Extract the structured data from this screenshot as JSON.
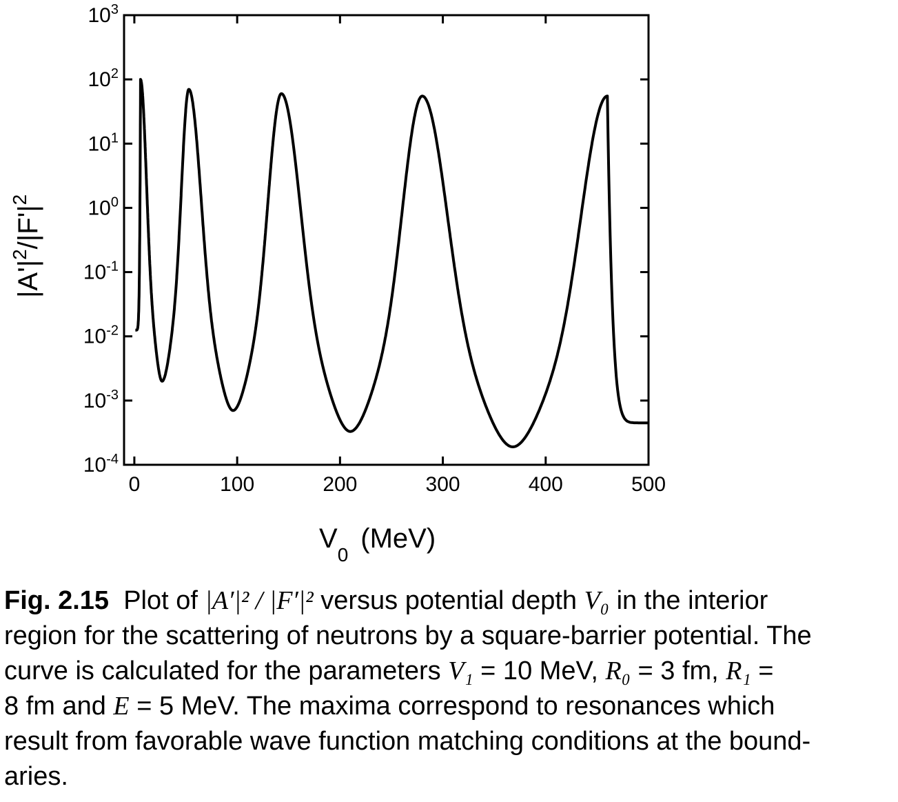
{
  "chart_data": {
    "type": "line",
    "xlabel": "V",
    "xlabel_sub": "0",
    "xlabel_unit": "(MeV)",
    "ylabel": "|A'|",
    "ylabel_sup1": "2",
    "ylabel_mid": "/|F'|",
    "ylabel_sup2": "2",
    "xlim": [
      -10,
      500
    ],
    "ylim": [
      0.0001,
      1000
    ],
    "yscale": "log",
    "x_ticks": [
      0,
      100,
      200,
      300,
      400,
      500
    ],
    "x_tick_labels": [
      "0",
      "100",
      "200",
      "300",
      "400",
      "500"
    ],
    "y_ticks": [
      {
        "value": 0.0001,
        "base": "10",
        "exp": "-4"
      },
      {
        "value": 0.001,
        "base": "10",
        "exp": "-3"
      },
      {
        "value": 0.01,
        "base": "10",
        "exp": "-2"
      },
      {
        "value": 0.1,
        "base": "10",
        "exp": "-1"
      },
      {
        "value": 1,
        "base": "10",
        "exp": "0"
      },
      {
        "value": 10,
        "base": "10",
        "exp": "1"
      },
      {
        "value": 100,
        "base": "10",
        "exp": "2"
      },
      {
        "value": 1000,
        "base": "10",
        "exp": "3"
      }
    ],
    "grid": false,
    "line_color": "#000000",
    "series": [
      {
        "resonances": [
          {
            "x": 6,
            "y": 100
          },
          {
            "x": 53,
            "y": 70
          },
          {
            "x": 143,
            "y": 60
          },
          {
            "x": 280,
            "y": 55
          },
          {
            "x": 460,
            "y": 55
          }
        ],
        "minima": [
          {
            "x": 27,
            "y": 0.002
          },
          {
            "x": 96,
            "y": 0.0007
          },
          {
            "x": 210,
            "y": 0.00033
          },
          {
            "x": 368,
            "y": 0.00019
          }
        ],
        "start": {
          "x": 1,
          "y": 0.0125
        },
        "end": {
          "x": 500,
          "y": 0.00045
        }
      }
    ]
  },
  "caption": {
    "label": "Fig. 2.15",
    "line1_a": "Plot of ",
    "math1": "|A′|² / |F′|²",
    "line1_b": " versus potential depth ",
    "math2": "V₀",
    "line1_c": " in the interior",
    "line2": "region for the scattering of neutrons by a square-barrier potential. The",
    "line3_a": "curve is calculated for the parameters ",
    "math3": "V₁",
    "line3_b": " = 10 MeV, ",
    "math4": "R₀",
    "line3_c": " = 3 fm, ",
    "math5": "R₁",
    "line3_d": " =",
    "line4_a": "8 fm and ",
    "math6": "E",
    "line4_b": " = 5 MeV. The maxima correspond to resonances which",
    "line5": "result from favorable wave function matching conditions at the bound-",
    "line6": "aries."
  }
}
